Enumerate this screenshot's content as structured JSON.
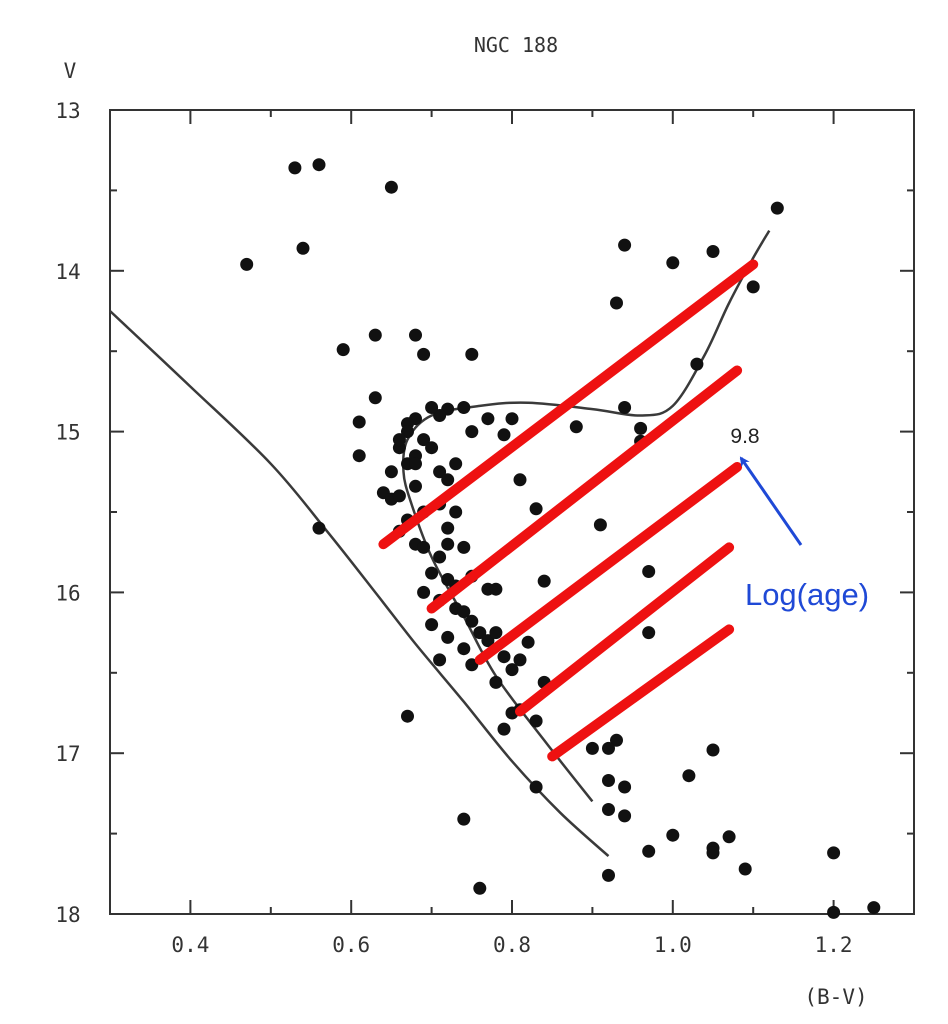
{
  "chart_data": {
    "type": "scatter",
    "title": "NGC 188",
    "xlabel": "(B-V)",
    "ylabel": "V",
    "xlim": [
      0.3,
      1.3
    ],
    "ylim": [
      18,
      13
    ],
    "y_inverted": true,
    "grid": false,
    "x_ticks": [
      0.4,
      0.6,
      0.8,
      1.0,
      1.2
    ],
    "x_tick_labels": [
      "0.4",
      "0.6",
      "0.8",
      "1.0",
      "1.2"
    ],
    "y_ticks": [
      13,
      14,
      15,
      16,
      17,
      18
    ],
    "y_tick_labels": [
      "13",
      "14",
      "15",
      "16",
      "17",
      "18"
    ],
    "stars": [
      [
        0.53,
        13.36
      ],
      [
        0.56,
        13.34
      ],
      [
        0.65,
        13.48
      ],
      [
        0.47,
        13.96
      ],
      [
        0.54,
        13.86
      ],
      [
        0.59,
        14.49
      ],
      [
        0.63,
        14.4
      ],
      [
        0.68,
        14.4
      ],
      [
        0.69,
        14.52
      ],
      [
        0.75,
        14.52
      ],
      [
        0.63,
        14.79
      ],
      [
        0.61,
        14.94
      ],
      [
        0.61,
        15.15
      ],
      [
        0.56,
        15.6
      ],
      [
        0.67,
        16.77
      ],
      [
        1.13,
        13.61
      ],
      [
        0.94,
        13.84
      ],
      [
        1.0,
        13.95
      ],
      [
        0.93,
        14.2
      ],
      [
        1.1,
        14.1
      ],
      [
        1.05,
        13.88
      ],
      [
        1.03,
        14.58
      ],
      [
        0.94,
        14.85
      ],
      [
        0.96,
        14.98
      ],
      [
        0.96,
        15.06
      ],
      [
        0.88,
        14.97
      ],
      [
        0.91,
        15.58
      ],
      [
        0.97,
        15.87
      ],
      [
        0.97,
        16.25
      ],
      [
        0.93,
        16.92
      ],
      [
        0.9,
        16.97
      ],
      [
        0.92,
        16.97
      ],
      [
        0.92,
        17.17
      ],
      [
        0.94,
        17.21
      ],
      [
        0.92,
        17.35
      ],
      [
        0.94,
        17.39
      ],
      [
        0.97,
        17.61
      ],
      [
        1.0,
        17.51
      ],
      [
        1.02,
        17.14
      ],
      [
        1.05,
        16.98
      ],
      [
        1.05,
        17.59
      ],
      [
        1.05,
        17.62
      ],
      [
        1.07,
        17.52
      ],
      [
        1.09,
        17.72
      ],
      [
        1.2,
        17.62
      ],
      [
        1.2,
        17.99
      ],
      [
        1.25,
        17.96
      ],
      [
        0.92,
        17.76
      ],
      [
        0.76,
        17.84
      ],
      [
        0.74,
        17.41
      ],
      [
        0.83,
        17.21
      ],
      [
        0.79,
        16.85
      ],
      [
        0.81,
        16.73
      ],
      [
        0.84,
        16.56
      ],
      [
        0.81,
        16.42
      ],
      [
        0.82,
        16.31
      ],
      [
        0.84,
        15.93
      ],
      [
        0.83,
        15.48
      ],
      [
        0.81,
        15.3
      ],
      [
        0.79,
        15.02
      ],
      [
        0.8,
        14.92
      ],
      [
        0.77,
        14.92
      ],
      [
        0.75,
        15.0
      ],
      [
        0.74,
        14.85
      ],
      [
        0.72,
        14.86
      ],
      [
        0.71,
        14.9
      ],
      [
        0.7,
        14.85
      ],
      [
        0.68,
        14.92
      ],
      [
        0.67,
        14.95
      ],
      [
        0.67,
        15.0
      ],
      [
        0.69,
        15.05
      ],
      [
        0.66,
        15.1
      ],
      [
        0.67,
        15.2
      ],
      [
        0.65,
        15.25
      ],
      [
        0.68,
        15.15
      ],
      [
        0.7,
        15.1
      ],
      [
        0.71,
        15.25
      ],
      [
        0.72,
        15.3
      ],
      [
        0.73,
        15.2
      ],
      [
        0.64,
        15.38
      ],
      [
        0.65,
        15.42
      ],
      [
        0.66,
        15.4
      ],
      [
        0.68,
        15.34
      ],
      [
        0.67,
        15.55
      ],
      [
        0.69,
        15.5
      ],
      [
        0.71,
        15.45
      ],
      [
        0.73,
        15.5
      ],
      [
        0.66,
        15.62
      ],
      [
        0.68,
        15.7
      ],
      [
        0.69,
        15.72
      ],
      [
        0.71,
        15.78
      ],
      [
        0.72,
        15.7
      ],
      [
        0.74,
        15.72
      ],
      [
        0.7,
        15.88
      ],
      [
        0.72,
        15.92
      ],
      [
        0.73,
        15.96
      ],
      [
        0.75,
        15.9
      ],
      [
        0.77,
        15.98
      ],
      [
        0.78,
        15.98
      ],
      [
        0.69,
        16.0
      ],
      [
        0.71,
        16.05
      ],
      [
        0.73,
        16.1
      ],
      [
        0.74,
        16.12
      ],
      [
        0.75,
        16.18
      ],
      [
        0.76,
        16.25
      ],
      [
        0.7,
        16.2
      ],
      [
        0.72,
        16.28
      ],
      [
        0.74,
        16.35
      ],
      [
        0.77,
        16.3
      ],
      [
        0.78,
        16.25
      ],
      [
        0.71,
        16.42
      ],
      [
        0.75,
        16.45
      ],
      [
        0.79,
        16.4
      ],
      [
        0.8,
        16.48
      ],
      [
        0.78,
        16.56
      ],
      [
        0.8,
        16.75
      ],
      [
        0.83,
        16.8
      ],
      [
        0.66,
        15.05
      ],
      [
        0.68,
        15.2
      ],
      [
        0.72,
        15.6
      ]
    ],
    "isochrone_curves": [
      {
        "name": "main_sequence_isochrone",
        "points": [
          [
            0.3,
            14.25
          ],
          [
            0.4,
            14.72
          ],
          [
            0.5,
            15.2
          ],
          [
            0.57,
            15.62
          ],
          [
            0.63,
            16.0
          ],
          [
            0.68,
            16.32
          ],
          [
            0.74,
            16.68
          ],
          [
            0.8,
            17.05
          ],
          [
            0.86,
            17.37
          ],
          [
            0.92,
            17.64
          ]
        ]
      },
      {
        "name": "turnoff_giant_isochrone",
        "points": [
          [
            0.9,
            17.3
          ],
          [
            0.84,
            16.92
          ],
          [
            0.78,
            16.52
          ],
          [
            0.74,
            16.15
          ],
          [
            0.7,
            15.78
          ],
          [
            0.675,
            15.45
          ],
          [
            0.665,
            15.25
          ],
          [
            0.67,
            15.05
          ],
          [
            0.7,
            14.9
          ],
          [
            0.76,
            14.84
          ],
          [
            0.82,
            14.82
          ],
          [
            0.9,
            14.86
          ],
          [
            0.96,
            14.9
          ],
          [
            1.0,
            14.84
          ],
          [
            1.04,
            14.52
          ],
          [
            1.07,
            14.2
          ],
          [
            1.1,
            13.92
          ],
          [
            1.12,
            13.75
          ]
        ]
      }
    ],
    "age_lines": [
      [
        [
          0.64,
          15.7
        ],
        [
          1.1,
          13.96
        ]
      ],
      [
        [
          0.7,
          16.1
        ],
        [
          1.08,
          14.62
        ]
      ],
      [
        [
          0.76,
          16.42
        ],
        [
          1.08,
          15.22
        ]
      ],
      [
        [
          0.81,
          16.74
        ],
        [
          1.07,
          15.72
        ]
      ],
      [
        [
          0.85,
          17.02
        ],
        [
          1.07,
          16.23
        ]
      ]
    ],
    "annotations": {
      "age_value": "9.8",
      "age_label": "Log(age)"
    },
    "colors": {
      "stars": "#111111",
      "curves": "#3a3a3a",
      "age_lines": "#ee1111",
      "arrow": "#1f49d6",
      "frame": "#333333"
    }
  }
}
